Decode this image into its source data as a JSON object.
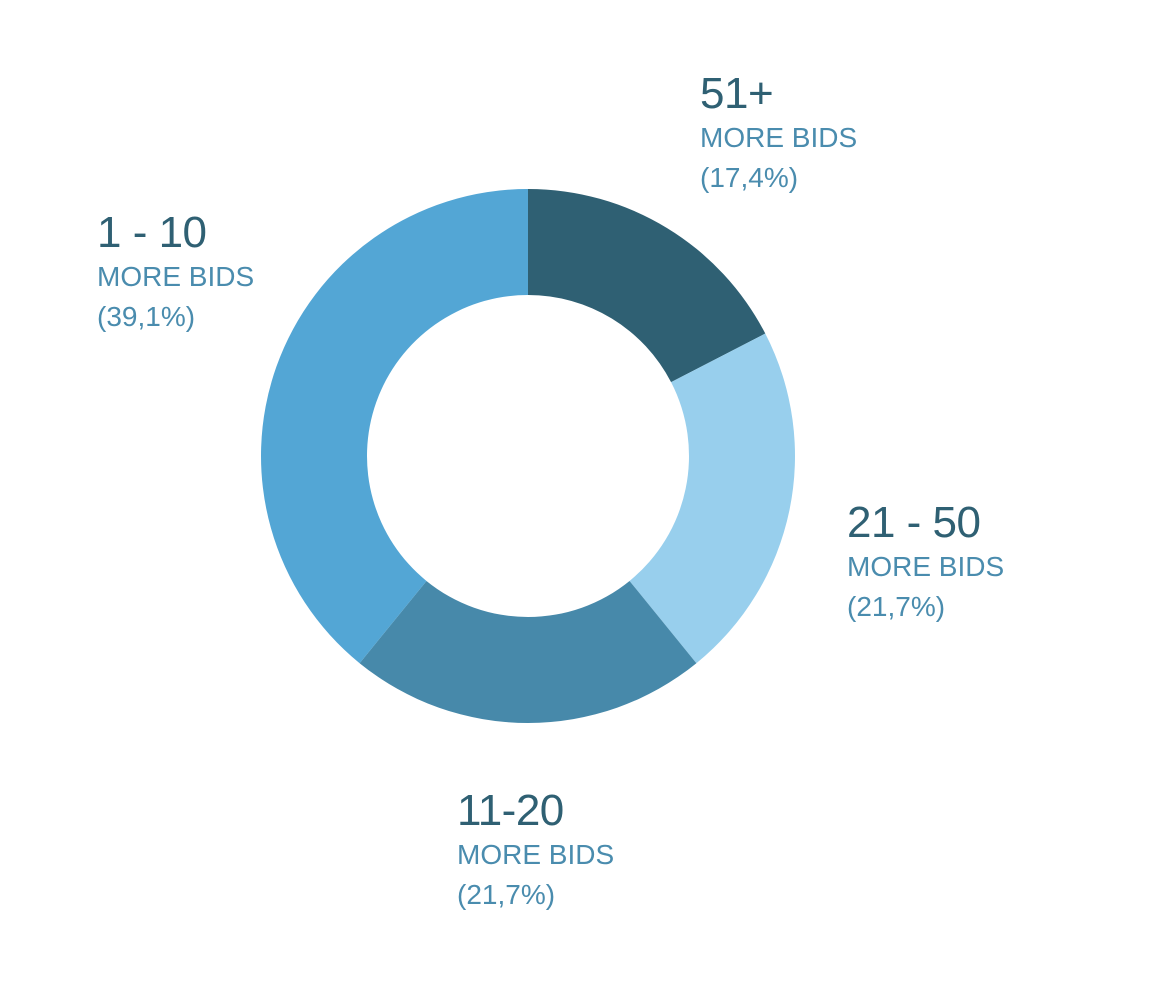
{
  "chart_data": {
    "type": "pie",
    "donut": true,
    "slices": [
      {
        "range": "51+",
        "sub": "MORE BIDS",
        "pct_label": "(17,4%)",
        "value": 17.4,
        "color": "#2f6073"
      },
      {
        "range": "21 - 50",
        "sub": "MORE BIDS",
        "pct_label": "(21,7%)",
        "value": 21.7,
        "color": "#98cfed"
      },
      {
        "range": "11-20",
        "sub": "MORE BIDS",
        "pct_label": "(21,7%)",
        "value": 21.7,
        "color": "#4789aa"
      },
      {
        "range": "1 - 10",
        "sub": "MORE BIDS",
        "pct_label": "(39,1%)",
        "value": 39.1,
        "color": "#53a6d5"
      }
    ]
  }
}
